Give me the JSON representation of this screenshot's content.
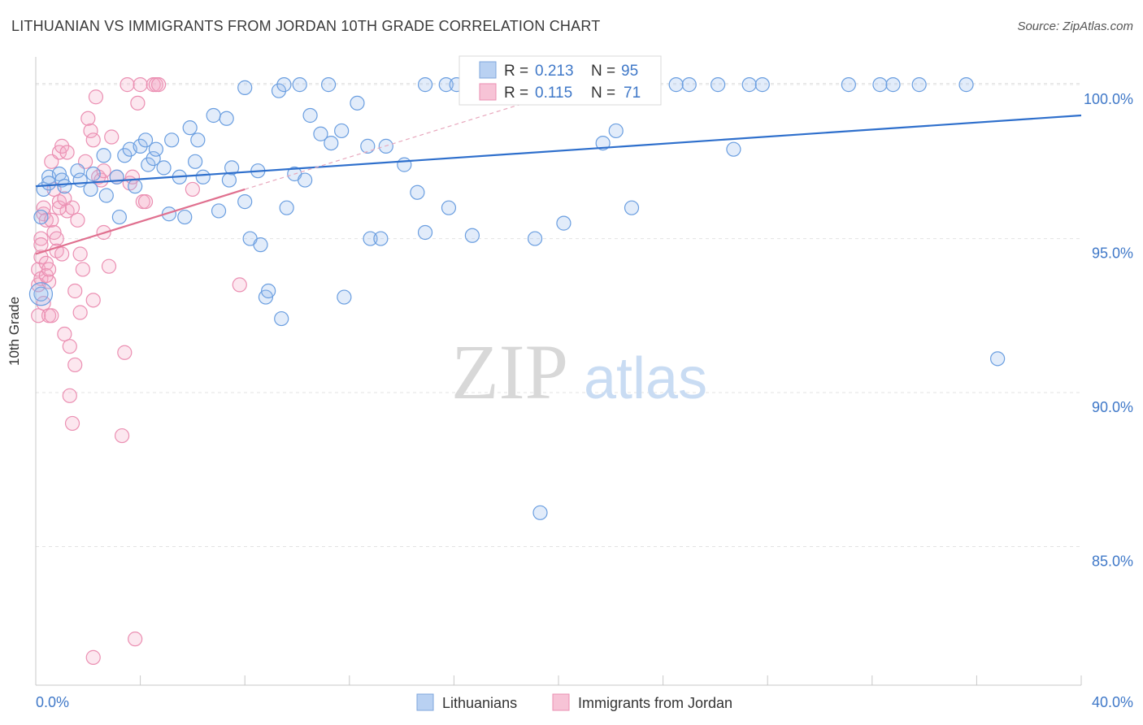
{
  "title": "LITHUANIAN VS IMMIGRANTS FROM JORDAN 10TH GRADE CORRELATION CHART",
  "source": "Source: ZipAtlas.com",
  "watermark": {
    "zip": "ZIP",
    "atlas": "atlas"
  },
  "chart_data": {
    "type": "scatter",
    "xlabel": "",
    "ylabel": "10th Grade",
    "xlim": [
      0,
      40
    ],
    "ylim": [
      80.5,
      100.9
    ],
    "x_tick_labels": [
      "0.0%",
      "40.0%"
    ],
    "y_ticks": [
      85,
      90,
      95,
      100
    ],
    "y_tick_labels": [
      "85.0%",
      "90.0%",
      "95.0%",
      "100.0%"
    ],
    "grid": true,
    "legend_position": "top-center",
    "colors": {
      "blue": "#6a9ee0",
      "blue_line": "#2e6fcc",
      "pink": "#eb8fb2",
      "pink_line": "#e0708f",
      "tick_text": "#3f78c8"
    },
    "legend": [
      {
        "r_label": "R =",
        "r_value": "0.213",
        "n_label": "N =",
        "n_value": "95"
      },
      {
        "r_label": "R =",
        "r_value": "0.115",
        "n_label": "N =",
        "n_value": "71"
      }
    ],
    "series": [
      {
        "name": "Lithuanians",
        "trend": {
          "x": [
            0,
            40
          ],
          "y": [
            96.7,
            99.0
          ]
        },
        "points": [
          [
            0.2,
            93.2
          ],
          [
            0.2,
            95.7
          ],
          [
            0.3,
            96.6
          ],
          [
            0.5,
            97.0
          ],
          [
            0.5,
            96.8
          ],
          [
            0.9,
            97.1
          ],
          [
            1.0,
            96.9
          ],
          [
            1.1,
            96.7
          ],
          [
            1.6,
            97.2
          ],
          [
            1.7,
            96.9
          ],
          [
            2.1,
            96.6
          ],
          [
            2.2,
            97.1
          ],
          [
            2.6,
            97.7
          ],
          [
            2.7,
            96.4
          ],
          [
            3.1,
            97.0
          ],
          [
            3.2,
            95.7
          ],
          [
            3.4,
            97.7
          ],
          [
            3.6,
            97.9
          ],
          [
            3.8,
            96.7
          ],
          [
            4.0,
            98.0
          ],
          [
            4.2,
            98.2
          ],
          [
            4.3,
            97.4
          ],
          [
            4.5,
            97.6
          ],
          [
            4.6,
            97.9
          ],
          [
            4.9,
            97.3
          ],
          [
            5.1,
            95.8
          ],
          [
            5.2,
            98.2
          ],
          [
            5.5,
            97.0
          ],
          [
            5.7,
            95.7
          ],
          [
            5.9,
            98.6
          ],
          [
            6.1,
            97.5
          ],
          [
            6.2,
            98.2
          ],
          [
            6.4,
            97.0
          ],
          [
            6.8,
            99.0
          ],
          [
            7.0,
            95.9
          ],
          [
            7.3,
            98.9
          ],
          [
            7.4,
            96.9
          ],
          [
            7.5,
            97.3
          ],
          [
            8.0,
            99.9
          ],
          [
            8.0,
            96.2
          ],
          [
            8.2,
            95.0
          ],
          [
            8.5,
            97.2
          ],
          [
            8.6,
            94.8
          ],
          [
            8.8,
            93.1
          ],
          [
            8.9,
            93.3
          ],
          [
            9.3,
            99.8
          ],
          [
            9.4,
            92.4
          ],
          [
            9.5,
            100.0
          ],
          [
            9.6,
            96.0
          ],
          [
            9.9,
            97.1
          ],
          [
            10.1,
            100.0
          ],
          [
            10.3,
            96.9
          ],
          [
            10.5,
            99.0
          ],
          [
            10.9,
            98.4
          ],
          [
            11.2,
            100.0
          ],
          [
            11.3,
            98.1
          ],
          [
            11.7,
            98.5
          ],
          [
            11.8,
            93.1
          ],
          [
            12.3,
            99.4
          ],
          [
            12.7,
            98.0
          ],
          [
            12.8,
            95.0
          ],
          [
            13.2,
            95.0
          ],
          [
            13.4,
            98.0
          ],
          [
            14.1,
            97.4
          ],
          [
            14.6,
            96.5
          ],
          [
            14.9,
            95.2
          ],
          [
            14.9,
            100.0
          ],
          [
            15.7,
            100.0
          ],
          [
            15.8,
            96.0
          ],
          [
            16.1,
            100.0
          ],
          [
            16.7,
            95.1
          ],
          [
            16.9,
            100.0
          ],
          [
            17.1,
            100.0
          ],
          [
            18.3,
            100.0
          ],
          [
            19.1,
            95.0
          ],
          [
            19.5,
            100.0
          ],
          [
            20.2,
            95.5
          ],
          [
            20.9,
            100.0
          ],
          [
            21.7,
            98.1
          ],
          [
            22.2,
            98.5
          ],
          [
            22.8,
            96.0
          ],
          [
            23.6,
            100.0
          ],
          [
            24.5,
            100.0
          ],
          [
            25.0,
            100.0
          ],
          [
            26.1,
            100.0
          ],
          [
            26.7,
            97.9
          ],
          [
            27.3,
            100.0
          ],
          [
            27.8,
            100.0
          ],
          [
            31.1,
            100.0
          ],
          [
            32.3,
            100.0
          ],
          [
            32.8,
            100.0
          ],
          [
            33.8,
            100.0
          ],
          [
            35.6,
            100.0
          ],
          [
            36.8,
            91.1
          ],
          [
            19.3,
            86.1
          ]
        ]
      },
      {
        "name": "Immigrants from Jordan",
        "trend": {
          "x": [
            0,
            8
          ],
          "y": [
            94.5,
            96.6
          ]
        },
        "dashed": {
          "x": [
            8,
            21
          ],
          "y": [
            96.6,
            100.0
          ]
        },
        "points": [
          [
            0.1,
            92.5
          ],
          [
            0.1,
            93.5
          ],
          [
            0.1,
            94.0
          ],
          [
            0.2,
            93.7
          ],
          [
            0.2,
            94.4
          ],
          [
            0.2,
            95.0
          ],
          [
            0.3,
            95.8
          ],
          [
            0.3,
            96.0
          ],
          [
            0.4,
            95.6
          ],
          [
            0.4,
            94.2
          ],
          [
            0.5,
            93.6
          ],
          [
            0.5,
            92.5
          ],
          [
            0.6,
            95.6
          ],
          [
            0.6,
            97.5
          ],
          [
            0.7,
            96.6
          ],
          [
            0.7,
            95.2
          ],
          [
            0.8,
            95.0
          ],
          [
            0.8,
            94.6
          ],
          [
            0.9,
            96.2
          ],
          [
            0.9,
            97.8
          ],
          [
            1.0,
            98.0
          ],
          [
            1.0,
            94.5
          ],
          [
            1.1,
            91.9
          ],
          [
            1.2,
            97.8
          ],
          [
            1.2,
            95.9
          ],
          [
            1.3,
            89.9
          ],
          [
            1.3,
            91.5
          ],
          [
            1.4,
            89.0
          ],
          [
            1.5,
            90.9
          ],
          [
            1.5,
            93.3
          ],
          [
            1.6,
            95.6
          ],
          [
            1.7,
            92.6
          ],
          [
            1.7,
            94.5
          ],
          [
            1.8,
            94.0
          ],
          [
            1.9,
            97.5
          ],
          [
            2.0,
            98.9
          ],
          [
            2.1,
            98.5
          ],
          [
            2.2,
            98.2
          ],
          [
            2.2,
            93.0
          ],
          [
            2.3,
            99.6
          ],
          [
            2.4,
            97.0
          ],
          [
            2.5,
            96.9
          ],
          [
            2.6,
            97.2
          ],
          [
            2.6,
            95.2
          ],
          [
            2.8,
            94.1
          ],
          [
            2.9,
            98.3
          ],
          [
            3.1,
            97.0
          ],
          [
            3.3,
            88.6
          ],
          [
            3.4,
            91.3
          ],
          [
            3.5,
            100.0
          ],
          [
            3.6,
            96.8
          ],
          [
            3.7,
            97.0
          ],
          [
            3.8,
            82.0
          ],
          [
            3.9,
            99.4
          ],
          [
            4.0,
            100.0
          ],
          [
            4.1,
            96.2
          ],
          [
            4.2,
            96.2
          ],
          [
            4.5,
            100.0
          ],
          [
            4.6,
            100.0
          ],
          [
            4.7,
            100.0
          ],
          [
            6.0,
            96.6
          ],
          [
            7.8,
            93.5
          ],
          [
            2.2,
            81.4
          ],
          [
            0.3,
            92.9
          ],
          [
            0.4,
            93.8
          ],
          [
            0.6,
            92.5
          ],
          [
            0.9,
            96.0
          ],
          [
            1.1,
            96.3
          ],
          [
            0.2,
            94.8
          ],
          [
            0.5,
            94.0
          ],
          [
            1.4,
            96.0
          ]
        ]
      }
    ]
  },
  "bottom_legend": [
    "Lithuanians",
    "Immigrants from Jordan"
  ]
}
